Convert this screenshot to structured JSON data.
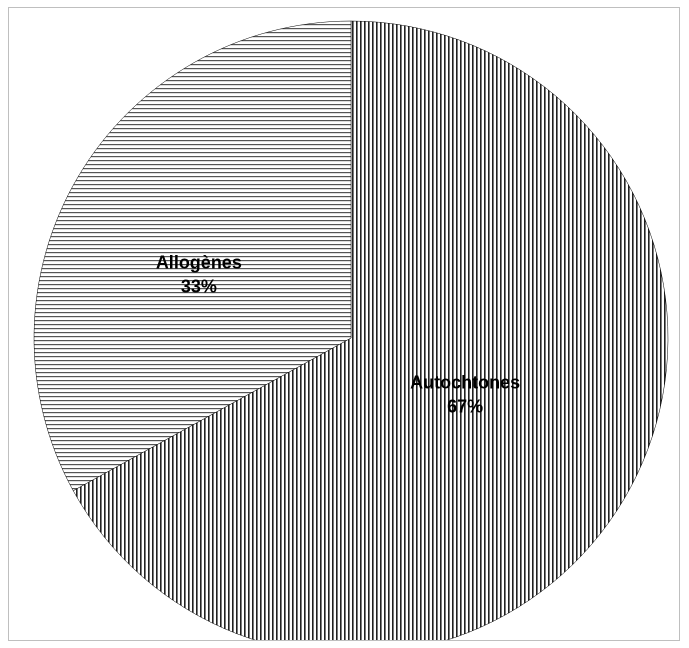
{
  "chart_data": {
    "type": "pie",
    "title": "",
    "series": [
      {
        "values": [
          67,
          33
        ],
        "categories": [
          "Autochtones",
          "Allogènes"
        ],
        "percent_labels": [
          "67%",
          "33%"
        ],
        "patterns": [
          "vertical-stripes",
          "horizontal-stripes"
        ]
      }
    ],
    "legend": "none",
    "colors": {
      "stroke": "#000000",
      "background": "#ffffff",
      "frame": "#bfbfbf"
    }
  }
}
